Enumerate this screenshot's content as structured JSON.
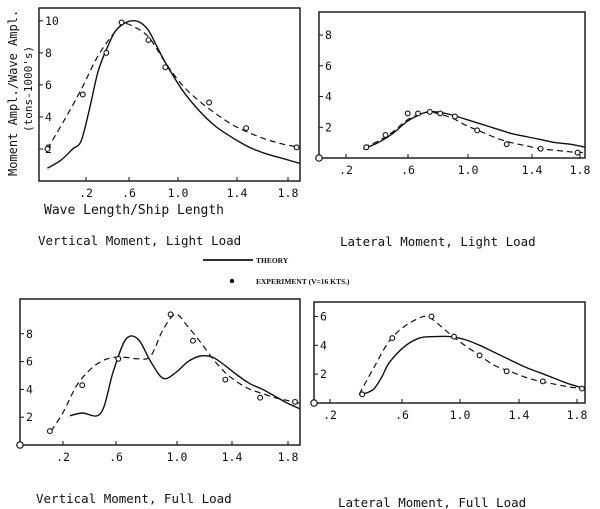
{
  "legend": {
    "theory_label": "THEORY",
    "experiment_label": "EXPERIMENT (V=16 KTS.)"
  },
  "chart_data": [
    {
      "type": "line",
      "title": "Vertical Moment, Light Load",
      "xlabel": "Wave Length/Ship Length",
      "ylabel": "Moment Ampl./Wave Ampl.",
      "ylabel2": "(tons-1000's)",
      "xlim": [
        0.25,
        1.8
      ],
      "ylim": [
        0,
        10.8
      ],
      "x_ticks": [
        ".2",
        ".6",
        "1.0",
        "1.4",
        "1.8"
      ],
      "y_ticks": [
        "2",
        "4",
        "6",
        "8",
        "10"
      ],
      "series": [
        {
          "style": "solid",
          "x": [
            0.3,
            0.38,
            0.45,
            0.5,
            0.55,
            0.6,
            0.65,
            0.7,
            0.75,
            0.8,
            0.85,
            0.9,
            0.95,
            1.0,
            1.1,
            1.2,
            1.3,
            1.4,
            1.5,
            1.6,
            1.7,
            1.8
          ],
          "y": [
            0.8,
            1.3,
            2.0,
            2.5,
            4.5,
            6.8,
            8.2,
            9.3,
            9.8,
            10.0,
            9.9,
            9.4,
            8.4,
            7.4,
            5.7,
            4.4,
            3.4,
            2.7,
            2.1,
            1.7,
            1.4,
            1.1
          ]
        },
        {
          "style": "dashed",
          "x": [
            0.3,
            0.4,
            0.5,
            0.6,
            0.7,
            0.75,
            0.8,
            0.9,
            1.0,
            1.1,
            1.2,
            1.3,
            1.4,
            1.5,
            1.6,
            1.7,
            1.8
          ],
          "y": [
            2.0,
            3.8,
            5.7,
            7.8,
            9.3,
            9.8,
            9.7,
            9.0,
            7.4,
            6.0,
            5.0,
            4.2,
            3.5,
            3.0,
            2.6,
            2.3,
            2.1
          ]
        },
        {
          "style": "markers",
          "x": [
            0.3,
            0.51,
            0.65,
            0.74,
            0.9,
            1.0,
            1.26,
            1.48,
            1.78
          ],
          "y": [
            2.0,
            5.4,
            8.0,
            9.9,
            8.8,
            7.1,
            4.9,
            3.3,
            2.1
          ]
        }
      ]
    },
    {
      "type": "line",
      "title": "Lateral Moment, Light Load",
      "xlim": [
        0.0,
        1.8
      ],
      "ylim": [
        0,
        9.5
      ],
      "x_ticks": [
        ".2",
        ".6",
        "1.0",
        "1.4",
        "1.8"
      ],
      "y_ticks": [
        "2",
        "4",
        "6",
        "8"
      ],
      "series": [
        {
          "style": "solid",
          "x": [
            0.3,
            0.4,
            0.5,
            0.6,
            0.7,
            0.75,
            0.8,
            0.9,
            1.0,
            1.1,
            1.2,
            1.3,
            1.4,
            1.5,
            1.6,
            1.7,
            1.8
          ],
          "y": [
            0.6,
            1.0,
            1.6,
            2.4,
            2.9,
            3.0,
            3.0,
            2.8,
            2.5,
            2.2,
            1.9,
            1.6,
            1.4,
            1.2,
            1.0,
            0.9,
            0.7
          ]
        },
        {
          "style": "dashed",
          "x": [
            0.3,
            0.4,
            0.5,
            0.6,
            0.7,
            0.75,
            0.8,
            0.9,
            1.0,
            1.1,
            1.2,
            1.3,
            1.4,
            1.5,
            1.6,
            1.7,
            1.8
          ],
          "y": [
            0.7,
            1.1,
            1.7,
            2.5,
            2.9,
            3.0,
            2.9,
            2.6,
            2.1,
            1.7,
            1.3,
            1.0,
            0.8,
            0.6,
            0.5,
            0.4,
            0.35
          ]
        },
        {
          "style": "markers",
          "x": [
            0.32,
            0.45,
            0.6,
            0.67,
            0.75,
            0.82,
            0.92,
            1.07,
            1.27,
            1.5,
            1.75
          ],
          "y": [
            0.7,
            1.5,
            2.9,
            2.9,
            3.0,
            2.9,
            2.7,
            1.8,
            0.9,
            0.6,
            0.35
          ]
        }
      ]
    },
    {
      "type": "line",
      "title": "Vertical Moment, Full Load",
      "xlim": [
        -0.45,
        1.8
      ],
      "ylim": [
        0,
        10.5
      ],
      "x_ticks": [
        ".2",
        ".6",
        "1.0",
        "1.4",
        "1.8"
      ],
      "y_ticks": [
        "2",
        "4",
        "6",
        "8"
      ],
      "series": [
        {
          "style": "solid",
          "x": [
            -0.05,
            0.05,
            0.2,
            0.3,
            0.4,
            0.5,
            0.6,
            0.7,
            0.8,
            0.9,
            1.0,
            1.1,
            1.2,
            1.3,
            1.4,
            1.5,
            1.6,
            1.7,
            1.8
          ],
          "y": [
            2.1,
            2.3,
            2.3,
            5.3,
            7.6,
            7.6,
            6.0,
            4.8,
            5.2,
            6.0,
            6.4,
            6.3,
            5.7,
            5.0,
            4.4,
            4.0,
            3.5,
            3.0,
            2.6
          ]
        },
        {
          "style": "dashed",
          "x": [
            -0.2,
            -0.1,
            0.0,
            0.1,
            0.2,
            0.3,
            0.4,
            0.5,
            0.6,
            0.7,
            0.8,
            0.9,
            1.0,
            1.1,
            1.2,
            1.3,
            1.4,
            1.5,
            1.6,
            1.7,
            1.8
          ],
          "y": [
            1.0,
            2.4,
            4.2,
            5.3,
            6.0,
            6.3,
            6.3,
            6.2,
            6.4,
            8.3,
            9.4,
            8.5,
            7.4,
            6.2,
            5.2,
            4.5,
            4.0,
            3.7,
            3.4,
            3.2,
            3.0
          ]
        },
        {
          "style": "markers",
          "x": [
            -0.21,
            0.05,
            0.34,
            0.76,
            0.94,
            1.2,
            1.48,
            1.76
          ],
          "y": [
            1.0,
            4.3,
            6.2,
            9.4,
            7.5,
            4.7,
            3.4,
            3.1
          ]
        }
      ]
    },
    {
      "type": "line",
      "title": "Lateral Moment, Full Load",
      "xlim": [
        0.0,
        1.8
      ],
      "ylim": [
        0,
        7.0
      ],
      "x_ticks": [
        ".2",
        ".6",
        "1.0",
        "1.4",
        "1.8"
      ],
      "y_ticks": [
        "2",
        "4",
        "6"
      ],
      "series": [
        {
          "style": "solid",
          "x": [
            0.3,
            0.35,
            0.4,
            0.45,
            0.5,
            0.6,
            0.7,
            0.8,
            0.9,
            1.0,
            1.1,
            1.2,
            1.3,
            1.4,
            1.5,
            1.6,
            1.7,
            1.8
          ],
          "y": [
            0.6,
            0.7,
            1.0,
            1.8,
            2.8,
            3.9,
            4.5,
            4.6,
            4.6,
            4.4,
            4.0,
            3.5,
            3.0,
            2.5,
            2.1,
            1.7,
            1.3,
            1.0
          ]
        },
        {
          "style": "dashed",
          "x": [
            0.3,
            0.4,
            0.5,
            0.6,
            0.7,
            0.75,
            0.8,
            0.9,
            1.0,
            1.1,
            1.2,
            1.3,
            1.4,
            1.5,
            1.6,
            1.7,
            1.8
          ],
          "y": [
            0.6,
            2.5,
            4.3,
            5.3,
            5.9,
            6.0,
            5.7,
            4.8,
            4.0,
            3.3,
            2.6,
            2.2,
            1.8,
            1.5,
            1.3,
            1.1,
            1.0
          ]
        },
        {
          "style": "markers",
          "x": [
            0.32,
            0.52,
            0.78,
            0.93,
            1.1,
            1.28,
            1.52,
            1.78
          ],
          "y": [
            0.6,
            4.5,
            6.0,
            4.6,
            3.3,
            2.2,
            1.5,
            1.0
          ]
        }
      ]
    }
  ]
}
